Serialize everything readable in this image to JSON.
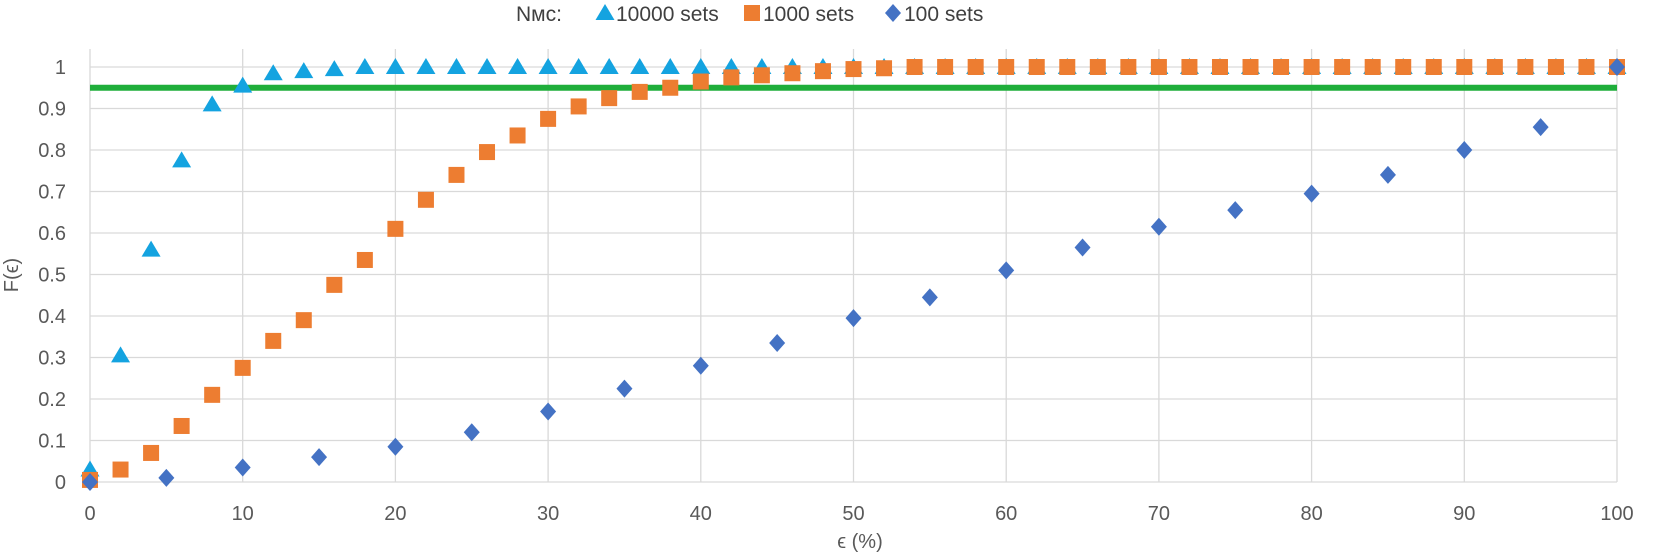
{
  "chart_data": {
    "type": "scatter",
    "title": "",
    "xlabel": "ϵ (%)",
    "ylabel": "F(ϵ)",
    "xlim": [
      0,
      100
    ],
    "ylim": [
      0,
      1
    ],
    "x_ticks": [
      "0",
      "10",
      "20",
      "30",
      "40",
      "50",
      "60",
      "70",
      "80",
      "90",
      "100"
    ],
    "y_ticks": [
      "0",
      "0.1",
      "0.2",
      "0.3",
      "0.4",
      "0.5",
      "0.6",
      "0.7",
      "0.8",
      "0.9",
      "1"
    ],
    "grid": true,
    "legend_placement": "top",
    "legend_title": "Nᴍᴄ:",
    "threshold_line": {
      "y": 0.95,
      "color": "#1fae3a"
    },
    "series": [
      {
        "name": "10000 sets",
        "marker": "triangle",
        "color": "#14a3e0",
        "x": [
          0,
          2,
          4,
          6,
          8,
          10,
          12,
          14,
          16,
          18,
          20,
          22,
          24,
          26,
          28,
          30,
          32,
          34,
          36,
          38,
          40,
          42,
          44,
          46,
          48,
          50,
          52,
          54,
          56,
          58,
          60,
          62,
          64,
          66,
          68,
          70,
          72,
          74,
          76,
          78,
          80,
          82,
          84,
          86,
          88,
          90,
          92,
          94,
          96,
          98,
          100
        ],
        "y": [
          0.03,
          0.305,
          0.56,
          0.775,
          0.91,
          0.955,
          0.985,
          0.99,
          0.995,
          1,
          1,
          1,
          1,
          1,
          1,
          1,
          1,
          1,
          1,
          1,
          1,
          1,
          1,
          1,
          1,
          1,
          1,
          1,
          1,
          1,
          1,
          1,
          1,
          1,
          1,
          1,
          1,
          1,
          1,
          1,
          1,
          1,
          1,
          1,
          1,
          1,
          1,
          1,
          1,
          1,
          1
        ]
      },
      {
        "name": "1000 sets",
        "marker": "square",
        "color": "#ed7d31",
        "x": [
          0,
          2,
          4,
          6,
          8,
          10,
          12,
          14,
          16,
          18,
          20,
          22,
          24,
          26,
          28,
          30,
          32,
          34,
          36,
          38,
          40,
          42,
          44,
          46,
          48,
          50,
          52,
          54,
          56,
          58,
          60,
          62,
          64,
          66,
          68,
          70,
          72,
          74,
          76,
          78,
          80,
          82,
          84,
          86,
          88,
          90,
          92,
          94,
          96,
          98,
          100
        ],
        "y": [
          0.005,
          0.03,
          0.07,
          0.135,
          0.21,
          0.275,
          0.34,
          0.39,
          0.475,
          0.535,
          0.61,
          0.68,
          0.74,
          0.795,
          0.835,
          0.875,
          0.905,
          0.925,
          0.94,
          0.95,
          0.965,
          0.975,
          0.98,
          0.985,
          0.99,
          0.995,
          0.997,
          1,
          1,
          1,
          1,
          1,
          1,
          1,
          1,
          1,
          1,
          1,
          1,
          1,
          1,
          1,
          1,
          1,
          1,
          1,
          1,
          1,
          1,
          1,
          1
        ]
      },
      {
        "name": "100 sets",
        "marker": "diamond",
        "color": "#4472c4",
        "x": [
          0,
          5,
          10,
          15,
          20,
          25,
          30,
          35,
          40,
          45,
          50,
          55,
          60,
          65,
          70,
          75,
          80,
          85,
          90,
          95,
          100
        ],
        "y": [
          0,
          0.01,
          0.035,
          0.06,
          0.085,
          0.12,
          0.17,
          0.225,
          0.28,
          0.335,
          0.395,
          0.445,
          0.51,
          0.565,
          0.615,
          0.655,
          0.695,
          0.74,
          0.8,
          0.855,
          1
        ]
      }
    ]
  }
}
